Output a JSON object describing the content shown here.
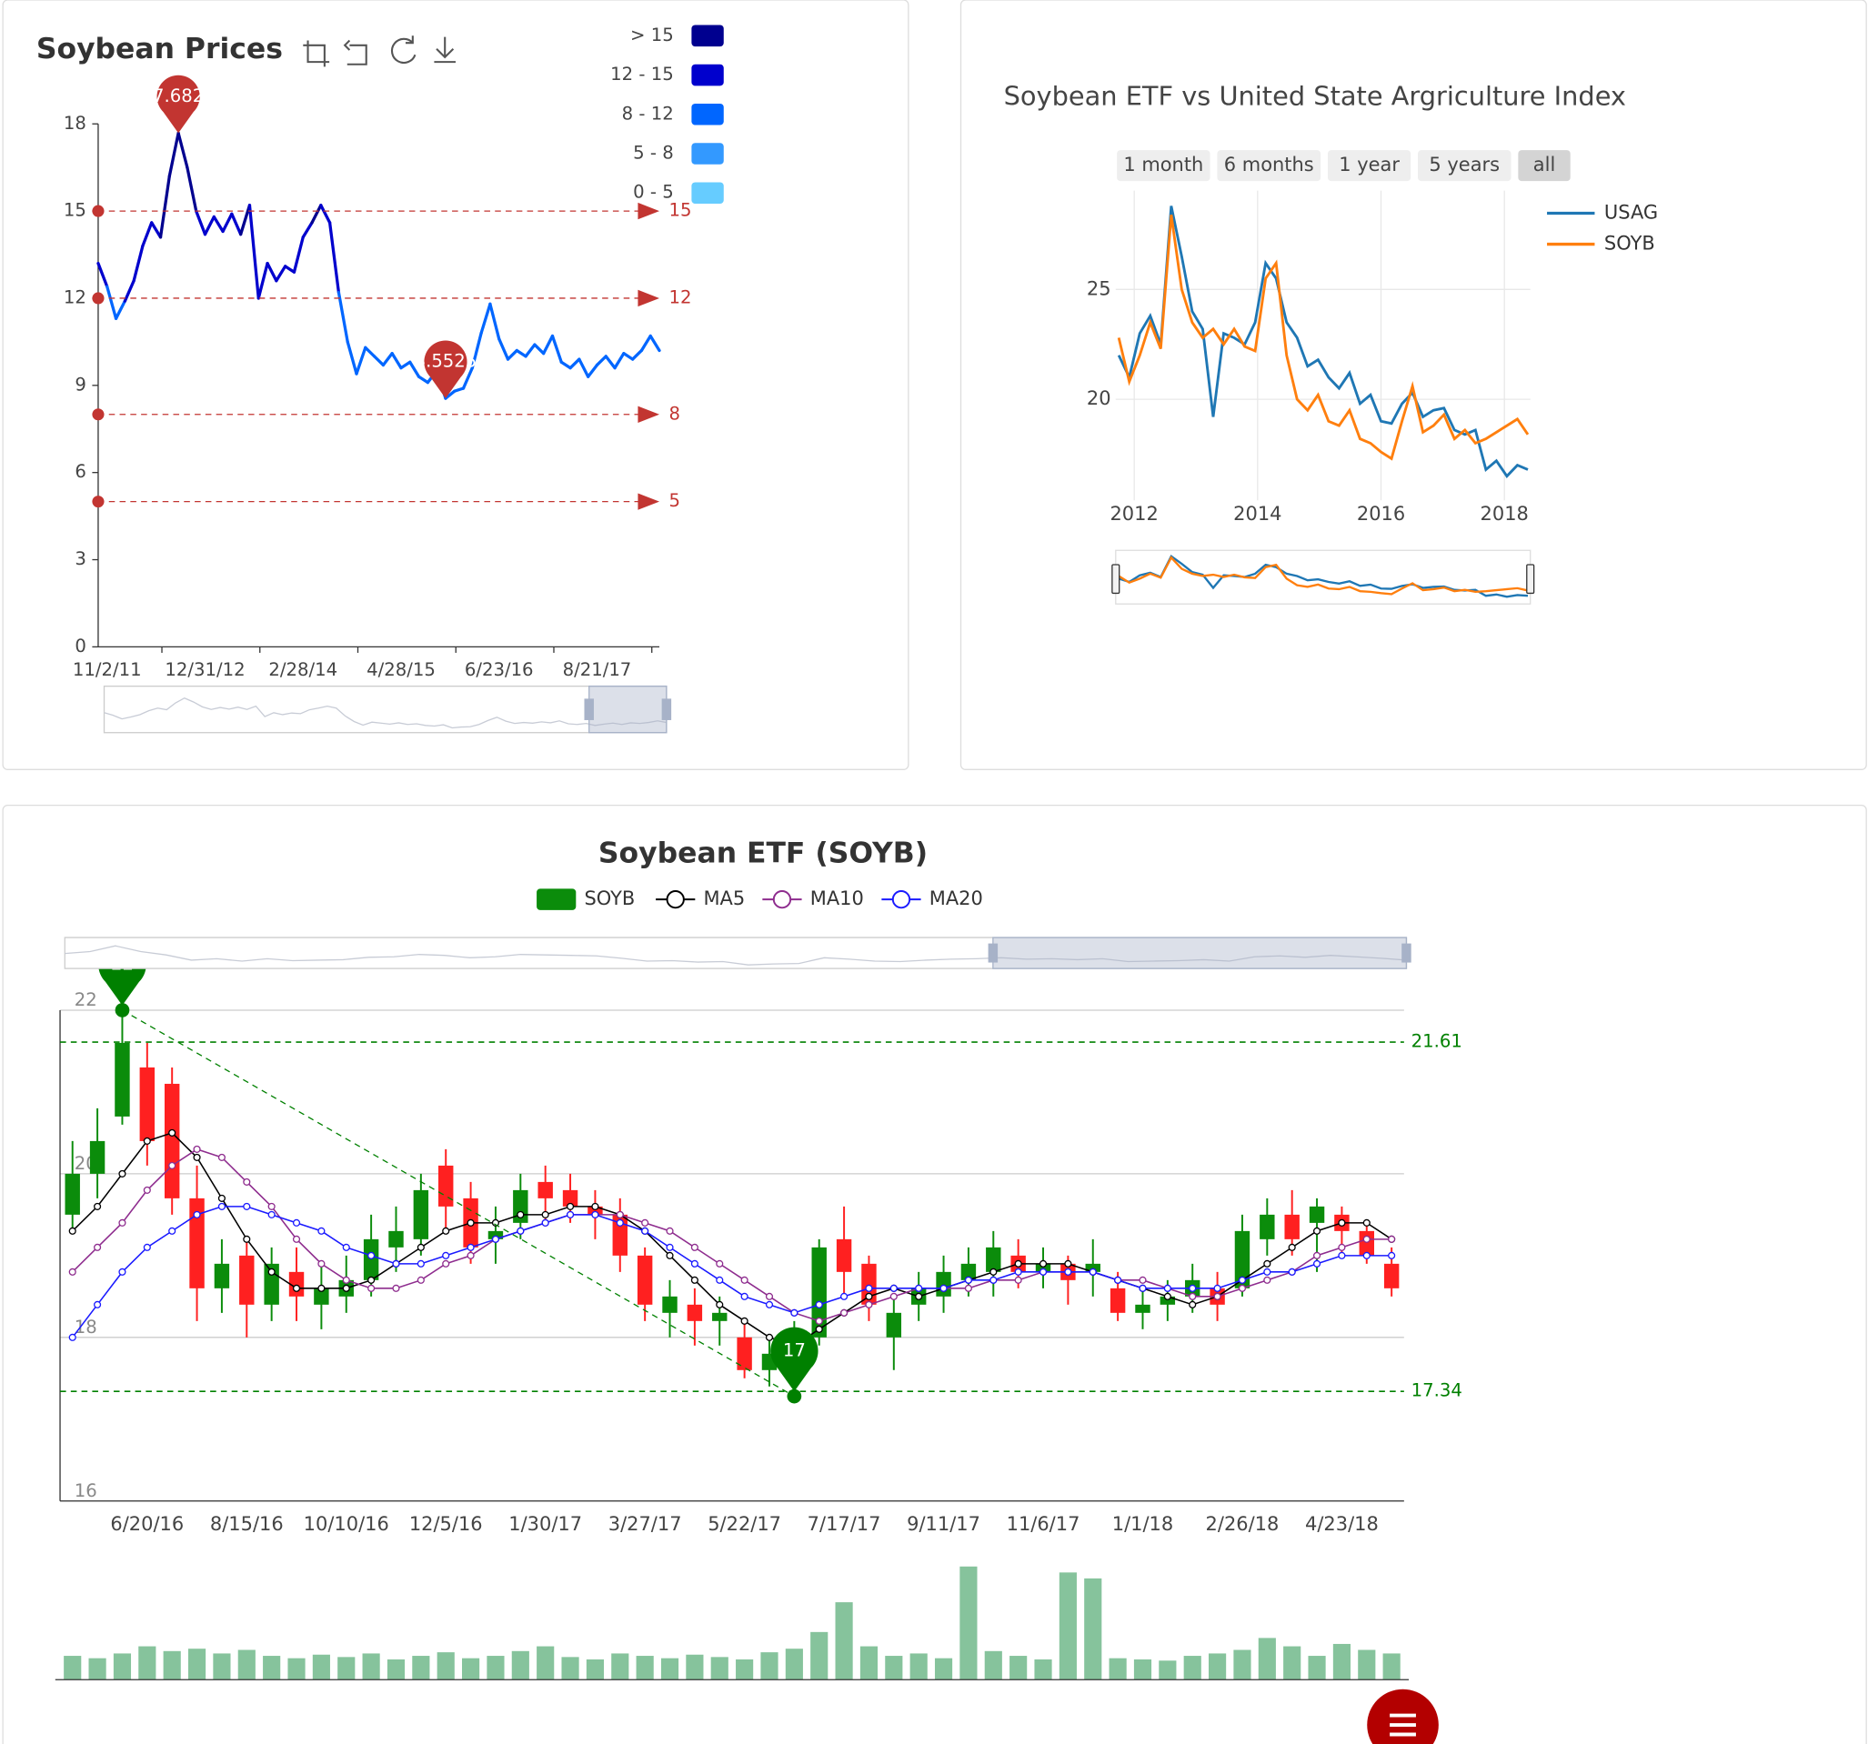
{
  "chart_data": [
    {
      "type": "line",
      "title": "Soybean Prices",
      "categories": [
        null,
        "11/2/11",
        null,
        null,
        null,
        null,
        null,
        null,
        null,
        null,
        null,
        null,
        "12/31/12",
        null,
        null,
        null,
        null,
        null,
        null,
        null,
        null,
        null,
        null,
        "2/28/14",
        null,
        null,
        null,
        null,
        null,
        null,
        null,
        null,
        null,
        null,
        "4/28/15",
        null,
        null,
        null,
        null,
        null,
        null,
        null,
        null,
        null,
        null,
        "6/23/16",
        null,
        null,
        null,
        null,
        null,
        null,
        null,
        null,
        null,
        null,
        "8/21/17",
        null,
        null,
        null,
        null,
        null,
        null,
        null
      ],
      "values": [
        13.2,
        12.4,
        11.3,
        11.9,
        12.6,
        13.8,
        14.6,
        14.1,
        16.2,
        17.6825,
        16.5,
        15.0,
        14.2,
        14.8,
        14.3,
        14.9,
        14.2,
        15.2,
        12.0,
        13.2,
        12.6,
        13.1,
        12.9,
        14.1,
        14.6,
        15.2,
        14.6,
        12.2,
        10.5,
        9.4,
        10.3,
        10.0,
        9.7,
        10.1,
        9.6,
        9.8,
        9.3,
        9.1,
        9.5,
        8.5525,
        8.8,
        8.9,
        9.6,
        10.8,
        11.8,
        10.6,
        9.9,
        10.2,
        10.0,
        10.4,
        10.1,
        10.7,
        9.8,
        9.6,
        9.9,
        9.3,
        9.7,
        10.0,
        9.6,
        10.1,
        9.9,
        10.2,
        10.7,
        10.2
      ],
      "ylim": [
        0,
        18
      ],
      "yticks": [
        0,
        3,
        6,
        9,
        12,
        15,
        18
      ],
      "pieces": [
        {
          "label": "> 15",
          "min": 15,
          "color": "#00008f"
        },
        {
          "label": "12 - 15",
          "min": 12,
          "max": 15,
          "color": "#0000cd"
        },
        {
          "label": "8 - 12",
          "min": 8,
          "max": 12,
          "color": "#0066ff"
        },
        {
          "label": "5 - 8",
          "min": 5,
          "max": 8,
          "color": "#3399ff"
        },
        {
          "label": "0 - 5",
          "min": 0,
          "max": 5,
          "color": "#66ccff"
        }
      ],
      "marklines": [
        15,
        12,
        8,
        5
      ],
      "markline_color": "#c23531",
      "markpoints": [
        {
          "type": "max"
        },
        {
          "type": "min"
        }
      ]
    },
    {
      "type": "line",
      "title": "Soybean ETF vs United State Argriculture Index",
      "x": [
        2011.75,
        2011.92,
        2012.09,
        2012.26,
        2012.43,
        2012.6,
        2012.77,
        2012.94,
        2013.11,
        2013.28,
        2013.45,
        2013.62,
        2013.79,
        2013.96,
        2014.13,
        2014.3,
        2014.47,
        2014.64,
        2014.81,
        2014.98,
        2015.15,
        2015.32,
        2015.49,
        2015.66,
        2015.83,
        2016.0,
        2016.17,
        2016.34,
        2016.51,
        2016.68,
        2016.85,
        2017.02,
        2017.19,
        2017.36,
        2017.53,
        2017.7,
        2017.87,
        2018.04,
        2018.21,
        2018.38
      ],
      "series": [
        {
          "name": "USAG",
          "color": "#1f77b4",
          "values": [
            22.0,
            21.0,
            23.0,
            23.8,
            22.5,
            28.8,
            26.5,
            24.0,
            23.2,
            19.2,
            23.0,
            22.8,
            22.5,
            23.5,
            26.2,
            25.5,
            23.5,
            22.8,
            21.5,
            21.8,
            21.0,
            20.5,
            21.2,
            19.8,
            20.2,
            19.0,
            18.9,
            19.8,
            20.3,
            19.2,
            19.5,
            19.6,
            18.6,
            18.4,
            18.6,
            16.8,
            17.2,
            16.5,
            17.0,
            16.8
          ]
        },
        {
          "name": "SOYB",
          "color": "#ff7f0e",
          "values": [
            22.8,
            20.8,
            22.0,
            23.5,
            22.3,
            28.4,
            25.0,
            23.5,
            22.8,
            23.2,
            22.5,
            23.2,
            22.4,
            22.2,
            25.5,
            26.2,
            22.0,
            20.0,
            19.5,
            20.2,
            19.0,
            18.8,
            19.5,
            18.2,
            18.0,
            17.6,
            17.3,
            19.0,
            20.6,
            18.5,
            18.8,
            19.3,
            18.2,
            18.6,
            18.0,
            18.2,
            18.5,
            18.8,
            19.1,
            18.4
          ]
        }
      ],
      "xlim": [
        2011.7,
        2018.42
      ],
      "xticks": [
        2012,
        2014,
        2016,
        2018
      ],
      "ylim": [
        15.4,
        29.5
      ],
      "yticks": [
        20,
        25
      ],
      "grid": true,
      "range_buttons": [
        "1 month",
        "6 months",
        "1 year",
        "5 years",
        "all"
      ],
      "range_active": 4,
      "rangeslider": true
    },
    {
      "type": "candlestick",
      "title": "Soybean ETF (SOYB)",
      "categories": [
        null,
        null,
        null,
        "6/20/16",
        null,
        null,
        null,
        "8/15/16",
        null,
        null,
        null,
        "10/10/16",
        null,
        null,
        null,
        "12/5/16",
        null,
        null,
        null,
        "1/30/17",
        null,
        null,
        null,
        "3/27/17",
        null,
        null,
        null,
        "5/22/17",
        null,
        null,
        null,
        "7/17/17",
        null,
        null,
        null,
        "9/11/17",
        null,
        null,
        null,
        "11/6/17",
        null,
        null,
        null,
        "1/1/18",
        null,
        null,
        null,
        "2/26/18",
        null,
        null,
        null,
        "4/23/18",
        null,
        null
      ],
      "series": [
        {
          "name": "SOYB",
          "up_color": "#0b8c0b",
          "down_color": "#ff2020",
          "values": [
            [
              19.5,
              20.0,
              19.3,
              20.4
            ],
            [
              20.0,
              20.4,
              19.7,
              20.8
            ],
            [
              20.7,
              21.6,
              20.6,
              22.0
            ],
            [
              21.3,
              20.4,
              20.1,
              21.6
            ],
            [
              21.1,
              19.7,
              19.5,
              21.3
            ],
            [
              19.7,
              18.6,
              18.2,
              20.1
            ],
            [
              18.6,
              18.9,
              18.3,
              19.2
            ],
            [
              19.0,
              18.4,
              18.0,
              19.2
            ],
            [
              18.4,
              18.9,
              18.2,
              19.1
            ],
            [
              18.8,
              18.5,
              18.2,
              19.1
            ],
            [
              18.4,
              18.6,
              18.1,
              18.9
            ],
            [
              18.5,
              18.7,
              18.3,
              19.0
            ],
            [
              18.7,
              19.2,
              18.5,
              19.5
            ],
            [
              19.1,
              19.3,
              18.8,
              19.6
            ],
            [
              19.2,
              19.8,
              19.0,
              20.0
            ],
            [
              20.1,
              19.6,
              19.3,
              20.3
            ],
            [
              19.7,
              19.1,
              18.9,
              19.9
            ],
            [
              19.2,
              19.3,
              18.9,
              19.6
            ],
            [
              19.4,
              19.8,
              19.2,
              20.0
            ],
            [
              19.9,
              19.7,
              19.4,
              20.1
            ],
            [
              19.8,
              19.6,
              19.4,
              20.0
            ],
            [
              19.6,
              19.5,
              19.2,
              19.8
            ],
            [
              19.5,
              19.0,
              18.8,
              19.7
            ],
            [
              19.0,
              18.4,
              18.2,
              19.1
            ],
            [
              18.3,
              18.5,
              18.0,
              18.7
            ],
            [
              18.4,
              18.2,
              17.9,
              18.6
            ],
            [
              18.2,
              18.3,
              17.9,
              18.5
            ],
            [
              18.0,
              17.6,
              17.5,
              18.2
            ],
            [
              17.6,
              17.8,
              17.4,
              18.0
            ],
            [
              17.6,
              17.9,
              17.28,
              18.2
            ],
            [
              18.0,
              19.1,
              17.9,
              19.2
            ],
            [
              19.2,
              18.8,
              18.5,
              19.6
            ],
            [
              18.9,
              18.4,
              18.2,
              19.0
            ],
            [
              18.0,
              18.3,
              17.6,
              18.5
            ],
            [
              18.4,
              18.6,
              18.2,
              18.8
            ],
            [
              18.5,
              18.8,
              18.3,
              19.0
            ],
            [
              18.7,
              18.9,
              18.5,
              19.1
            ],
            [
              18.8,
              19.1,
              18.5,
              19.3
            ],
            [
              19.0,
              18.8,
              18.6,
              19.2
            ],
            [
              18.8,
              18.9,
              18.6,
              19.1
            ],
            [
              18.9,
              18.7,
              18.4,
              19.0
            ],
            [
              18.8,
              18.9,
              18.5,
              19.2
            ],
            [
              18.6,
              18.3,
              18.2,
              18.8
            ],
            [
              18.3,
              18.4,
              18.1,
              18.6
            ],
            [
              18.4,
              18.5,
              18.2,
              18.7
            ],
            [
              18.5,
              18.7,
              18.3,
              18.9
            ],
            [
              18.6,
              18.4,
              18.2,
              18.8
            ],
            [
              18.6,
              19.3,
              18.5,
              19.5
            ],
            [
              19.2,
              19.5,
              19.0,
              19.7
            ],
            [
              19.5,
              19.2,
              19.0,
              19.8
            ],
            [
              19.4,
              19.6,
              18.8,
              19.7
            ],
            [
              19.5,
              19.3,
              19.0,
              19.6
            ],
            [
              19.3,
              19.0,
              18.9,
              19.4
            ],
            [
              18.9,
              18.6,
              18.5,
              19.1
            ]
          ]
        },
        {
          "name": "MA5",
          "color": "#000000",
          "values": [
            19.3,
            19.6,
            20.0,
            20.4,
            20.5,
            20.2,
            19.7,
            19.2,
            18.8,
            18.6,
            18.6,
            18.6,
            18.7,
            18.9,
            19.1,
            19.3,
            19.4,
            19.4,
            19.5,
            19.5,
            19.6,
            19.6,
            19.5,
            19.3,
            19.0,
            18.7,
            18.4,
            18.2,
            18.0,
            17.9,
            18.1,
            18.3,
            18.5,
            18.6,
            18.5,
            18.6,
            18.7,
            18.8,
            18.9,
            18.9,
            18.9,
            18.8,
            18.7,
            18.6,
            18.5,
            18.4,
            18.5,
            18.7,
            18.9,
            19.1,
            19.3,
            19.4,
            19.4,
            19.2
          ]
        },
        {
          "name": "MA10",
          "color": "#8e2c8e",
          "values": [
            18.8,
            19.1,
            19.4,
            19.8,
            20.1,
            20.3,
            20.2,
            19.9,
            19.6,
            19.2,
            18.9,
            18.7,
            18.6,
            18.6,
            18.7,
            18.9,
            19.0,
            19.2,
            19.3,
            19.4,
            19.5,
            19.5,
            19.5,
            19.4,
            19.3,
            19.1,
            18.9,
            18.7,
            18.5,
            18.3,
            18.2,
            18.3,
            18.4,
            18.5,
            18.6,
            18.6,
            18.6,
            18.7,
            18.7,
            18.8,
            18.8,
            18.8,
            18.7,
            18.7,
            18.6,
            18.5,
            18.5,
            18.6,
            18.7,
            18.8,
            19.0,
            19.1,
            19.2,
            19.2
          ]
        },
        {
          "name": "MA20",
          "color": "#1a1aff",
          "values": [
            18.0,
            18.4,
            18.8,
            19.1,
            19.3,
            19.5,
            19.6,
            19.6,
            19.5,
            19.4,
            19.3,
            19.1,
            19.0,
            18.9,
            18.9,
            19.0,
            19.1,
            19.2,
            19.3,
            19.4,
            19.5,
            19.5,
            19.4,
            19.3,
            19.1,
            18.9,
            18.7,
            18.5,
            18.4,
            18.3,
            18.4,
            18.5,
            18.6,
            18.6,
            18.6,
            18.6,
            18.7,
            18.7,
            18.8,
            18.8,
            18.8,
            18.8,
            18.7,
            18.6,
            18.6,
            18.6,
            18.6,
            18.7,
            18.8,
            18.8,
            18.9,
            19.0,
            19.0,
            19.0
          ]
        }
      ],
      "volume": [
        20,
        18,
        22,
        28,
        24,
        26,
        22,
        25,
        20,
        18,
        21,
        19,
        22,
        17,
        20,
        23,
        18,
        20,
        24,
        28,
        19,
        17,
        22,
        20,
        18,
        21,
        19,
        17,
        23,
        26,
        40,
        65,
        28,
        20,
        22,
        18,
        95,
        24,
        20,
        17,
        90,
        85,
        18,
        17,
        16,
        20,
        22,
        25,
        35,
        28,
        20,
        30,
        25,
        22
      ],
      "volume_color": "#86c39c",
      "ylim": [
        16,
        22
      ],
      "yticks": [
        16,
        18,
        20,
        22
      ],
      "grid": true,
      "marklines": [
        21.61,
        17.34
      ],
      "markline_color": "#008000",
      "markpoints": [
        {
          "type": "max",
          "label": "22"
        },
        {
          "type": "min",
          "label": "17"
        }
      ]
    }
  ]
}
